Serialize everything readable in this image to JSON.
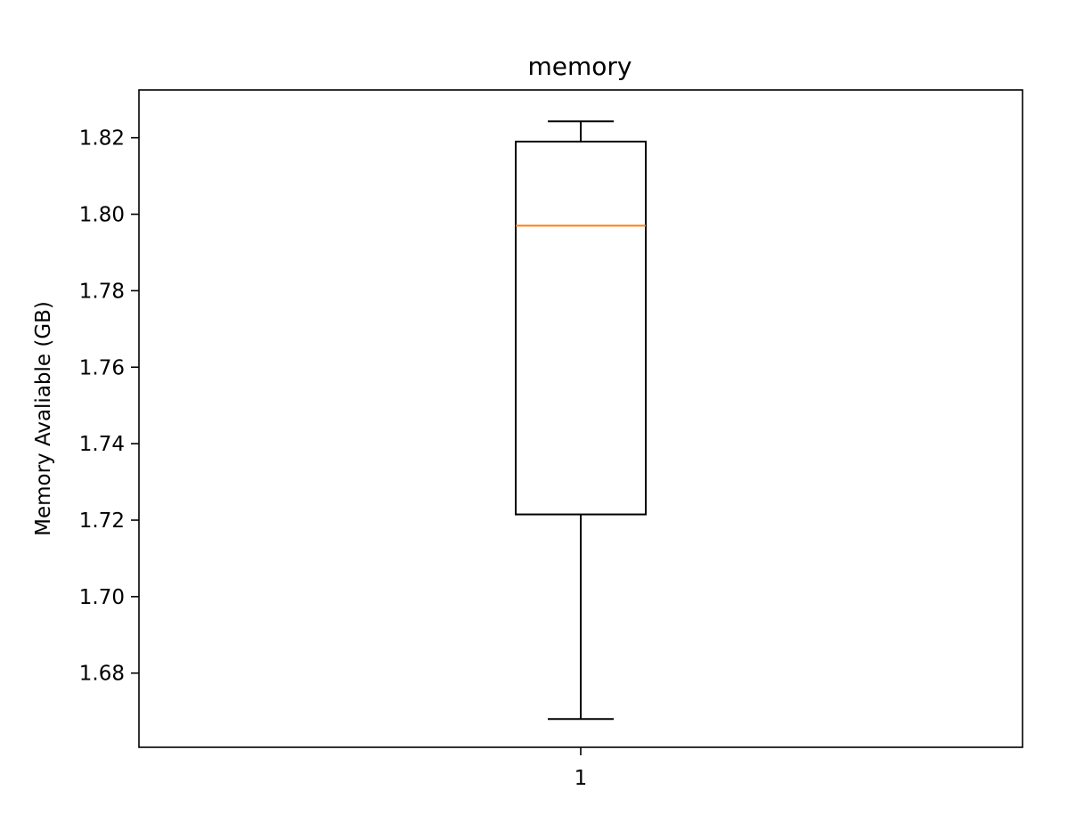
{
  "chart_data": {
    "type": "box",
    "title": "memory",
    "xlabel": "",
    "ylabel": "Memory Avaliable (GB)",
    "categories": [
      "1"
    ],
    "ylim": [
      1.6606,
      1.8325
    ],
    "y_ticks": [
      1.68,
      1.7,
      1.72,
      1.74,
      1.76,
      1.78,
      1.8,
      1.82
    ],
    "y_tick_labels": [
      "1.68",
      "1.70",
      "1.72",
      "1.74",
      "1.76",
      "1.78",
      "1.80",
      "1.82"
    ],
    "boxes": [
      {
        "category": "1",
        "whisker_low": 1.668,
        "q1": 1.7215,
        "median": 1.797,
        "q3": 1.819,
        "whisker_high": 1.8243
      }
    ],
    "grid": false,
    "colors": {
      "box": "#000000",
      "median": "#ff7f0e",
      "axes": "#000000"
    }
  }
}
